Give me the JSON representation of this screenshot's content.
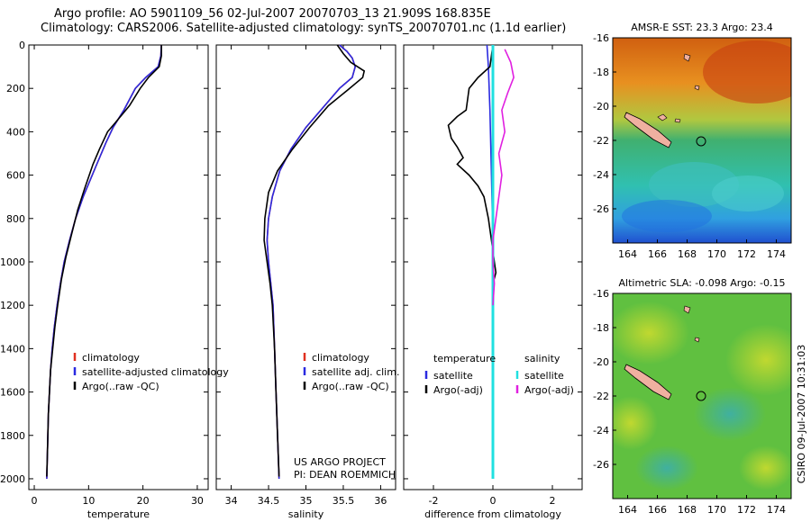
{
  "title_line1": "Argo profile: AO 5901109_56 02-Jul-2007 20070703_13 21.909S 168.835E",
  "title_line2": "Climatology: CARS2006. Satellite-adjusted climatology: synTS_20070701.nc (1.1d earlier)",
  "side_label": "CSIRO 09-Jul-2007 10:31:03",
  "credit_line1": "US ARGO PROJECT",
  "credit_line2": "PI: DEAN ROEMMICH",
  "colors": {
    "climatology": "#e03020",
    "satellite": "#2a2ae0",
    "argo": "#000000",
    "salinity_satellite": "#20e0e0",
    "salinity_argo": "#e020e0"
  },
  "chart_data": [
    {
      "type": "line",
      "xlabel": "temperature",
      "ylabel": "",
      "xlim": [
        -1,
        32
      ],
      "ylim": [
        2050,
        0
      ],
      "xticks": [
        0,
        10,
        20,
        30
      ],
      "yticks": [
        0,
        200,
        400,
        600,
        800,
        1000,
        1200,
        1400,
        1600,
        1800,
        2000
      ],
      "legend": [
        "climatology",
        "satellite-adjusted climatology",
        "Argo(..raw -QC)"
      ],
      "series": [
        {
          "name": "climatology",
          "color": "#e03020",
          "points": [
            [
              23.4,
              0
            ],
            [
              23.3,
              50
            ],
            [
              22.8,
              100
            ],
            [
              20.5,
              150
            ],
            [
              18.6,
              200
            ],
            [
              16.5,
              300
            ],
            [
              14.5,
              380
            ],
            [
              13.2,
              450
            ],
            [
              11.5,
              550
            ],
            [
              9.0,
              700
            ],
            [
              7.6,
              800
            ],
            [
              6.5,
              900
            ],
            [
              5.5,
              1000
            ],
            [
              4.8,
              1100
            ],
            [
              4.2,
              1200
            ],
            [
              3.7,
              1300
            ],
            [
              3.3,
              1400
            ],
            [
              3.0,
              1500
            ],
            [
              2.8,
              1600
            ],
            [
              2.6,
              1700
            ],
            [
              2.5,
              1800
            ],
            [
              2.4,
              1900
            ],
            [
              2.3,
              2000
            ]
          ]
        },
        {
          "name": "satellite-adjusted climatology",
          "color": "#2a2ae0",
          "points": [
            [
              23.4,
              0
            ],
            [
              23.3,
              50
            ],
            [
              22.8,
              100
            ],
            [
              20.5,
              150
            ],
            [
              18.6,
              200
            ],
            [
              16.5,
              300
            ],
            [
              14.5,
              380
            ],
            [
              13.2,
              450
            ],
            [
              11.5,
              550
            ],
            [
              9.0,
              700
            ],
            [
              7.6,
              800
            ],
            [
              6.5,
              900
            ],
            [
              5.5,
              1000
            ],
            [
              4.8,
              1100
            ],
            [
              4.2,
              1200
            ],
            [
              3.7,
              1300
            ],
            [
              3.3,
              1400
            ],
            [
              3.0,
              1500
            ],
            [
              2.8,
              1600
            ],
            [
              2.6,
              1700
            ],
            [
              2.5,
              1800
            ],
            [
              2.4,
              1900
            ],
            [
              2.3,
              2000
            ]
          ]
        },
        {
          "name": "Argo(..raw -QC)",
          "color": "#000000",
          "points": [
            [
              23.4,
              0
            ],
            [
              23.4,
              50
            ],
            [
              23.0,
              100
            ],
            [
              21.0,
              150
            ],
            [
              19.5,
              200
            ],
            [
              17.5,
              280
            ],
            [
              15.2,
              350
            ],
            [
              13.5,
              400
            ],
            [
              12.0,
              480
            ],
            [
              10.8,
              550
            ],
            [
              9.3,
              660
            ],
            [
              8.0,
              760
            ],
            [
              6.8,
              880
            ],
            [
              5.8,
              980
            ],
            [
              5.0,
              1080
            ],
            [
              4.3,
              1200
            ],
            [
              3.8,
              1300
            ],
            [
              3.4,
              1400
            ],
            [
              3.0,
              1500
            ],
            [
              2.8,
              1600
            ],
            [
              2.6,
              1700
            ],
            [
              2.5,
              1800
            ],
            [
              2.4,
              1900
            ],
            [
              2.3,
              1990
            ]
          ]
        }
      ]
    },
    {
      "type": "line",
      "xlabel": "salinity",
      "ylabel": "",
      "xlim": [
        33.8,
        36.2
      ],
      "ylim": [
        2050,
        0
      ],
      "xticks": [
        34,
        34.5,
        35,
        35.5,
        36
      ],
      "legend": [
        "climatology",
        "satellite adj. clim.",
        "Argo(..raw -QC)"
      ],
      "series": [
        {
          "name": "climatology",
          "color": "#e03020",
          "points": [
            [
              35.45,
              0
            ],
            [
              35.55,
              30
            ],
            [
              35.62,
              60
            ],
            [
              35.66,
              100
            ],
            [
              35.62,
              150
            ],
            [
              35.45,
              200
            ],
            [
              35.25,
              280
            ],
            [
              35.0,
              380
            ],
            [
              34.8,
              480
            ],
            [
              34.65,
              580
            ],
            [
              34.55,
              700
            ],
            [
              34.5,
              800
            ],
            [
              34.48,
              900
            ],
            [
              34.5,
              1000
            ],
            [
              34.53,
              1100
            ],
            [
              34.56,
              1200
            ],
            [
              34.58,
              1400
            ],
            [
              34.6,
              1600
            ],
            [
              34.62,
              1800
            ],
            [
              34.64,
              2000
            ]
          ]
        },
        {
          "name": "satellite adj. clim.",
          "color": "#2a2ae0",
          "points": [
            [
              35.45,
              0
            ],
            [
              35.55,
              30
            ],
            [
              35.62,
              60
            ],
            [
              35.66,
              100
            ],
            [
              35.62,
              150
            ],
            [
              35.45,
              200
            ],
            [
              35.25,
              280
            ],
            [
              35.0,
              380
            ],
            [
              34.8,
              480
            ],
            [
              34.65,
              580
            ],
            [
              34.55,
              700
            ],
            [
              34.5,
              800
            ],
            [
              34.48,
              900
            ],
            [
              34.5,
              1000
            ],
            [
              34.53,
              1100
            ],
            [
              34.56,
              1200
            ],
            [
              34.58,
              1400
            ],
            [
              34.6,
              1600
            ],
            [
              34.62,
              1800
            ],
            [
              34.64,
              2000
            ]
          ]
        },
        {
          "name": "Argo(..raw -QC)",
          "color": "#000000",
          "points": [
            [
              35.42,
              0
            ],
            [
              35.5,
              40
            ],
            [
              35.6,
              80
            ],
            [
              35.78,
              120
            ],
            [
              35.76,
              150
            ],
            [
              35.55,
              210
            ],
            [
              35.3,
              280
            ],
            [
              35.05,
              380
            ],
            [
              34.82,
              480
            ],
            [
              34.62,
              580
            ],
            [
              34.5,
              680
            ],
            [
              34.45,
              800
            ],
            [
              34.44,
              900
            ],
            [
              34.48,
              1000
            ],
            [
              34.52,
              1100
            ],
            [
              34.55,
              1200
            ],
            [
              34.58,
              1400
            ],
            [
              34.6,
              1600
            ],
            [
              34.62,
              1800
            ],
            [
              34.64,
              1990
            ]
          ]
        }
      ]
    },
    {
      "type": "line",
      "xlabel": "difference from climatology",
      "ylabel": "",
      "xlim": [
        -3,
        3
      ],
      "ylim": [
        2050,
        0
      ],
      "xticks": [
        -2,
        0,
        2
      ],
      "legend": [
        "temperature",
        "satellite",
        "Argo(-adj)",
        "salinity",
        "satellite",
        "Argo(-adj)"
      ],
      "series": [
        {
          "name": "temperature satellite",
          "color": "#2a2ae0",
          "points": [
            [
              -0.2,
              0
            ],
            [
              -0.15,
              100
            ],
            [
              -0.1,
              300
            ],
            [
              -0.05,
              600
            ],
            [
              0,
              900
            ],
            [
              0,
              1200
            ]
          ]
        },
        {
          "name": "temperature Argo(-adj)",
          "color": "#000000",
          "points": [
            [
              0,
              0
            ],
            [
              -0.1,
              100
            ],
            [
              -0.5,
              150
            ],
            [
              -0.8,
              200
            ],
            [
              -0.9,
              300
            ],
            [
              -1.2,
              330
            ],
            [
              -1.5,
              370
            ],
            [
              -1.4,
              430
            ],
            [
              -1.2,
              470
            ],
            [
              -1.0,
              520
            ],
            [
              -1.2,
              550
            ],
            [
              -0.8,
              600
            ],
            [
              -0.5,
              650
            ],
            [
              -0.3,
              700
            ],
            [
              -0.15,
              800
            ],
            [
              -0.05,
              900
            ],
            [
              0.05,
              1000
            ],
            [
              0.1,
              1050
            ],
            [
              0,
              1100
            ],
            [
              0,
              1250
            ]
          ]
        },
        {
          "name": "salinity satellite",
          "color": "#20e0e0",
          "points": [
            [
              0,
              0
            ],
            [
              0,
              500
            ],
            [
              0,
              1000
            ],
            [
              0,
              1500
            ],
            [
              0,
              2000
            ]
          ]
        },
        {
          "name": "salinity Argo(-adj)",
          "color": "#e020e0",
          "points": [
            [
              0.4,
              20
            ],
            [
              0.6,
              80
            ],
            [
              0.7,
              150
            ],
            [
              0.5,
              220
            ],
            [
              0.3,
              300
            ],
            [
              0.4,
              400
            ],
            [
              0.2,
              500
            ],
            [
              0.3,
              600
            ],
            [
              0.2,
              700
            ],
            [
              0.1,
              800
            ],
            [
              0,
              900
            ],
            [
              0,
              1000
            ],
            [
              0.05,
              1100
            ],
            [
              0,
              1200
            ]
          ]
        }
      ]
    },
    {
      "type": "heatmap",
      "title": "AMSR-E SST: 23.3 Argo: 23.4",
      "xlim": [
        163,
        175
      ],
      "ylim": [
        -28,
        -16
      ],
      "xticks": [
        164,
        166,
        168,
        170,
        172,
        174
      ],
      "yticks": [
        -16,
        -18,
        -20,
        -22,
        -24,
        -26
      ]
    },
    {
      "type": "heatmap",
      "title": "Altimetric SLA: -0.098 Argo: -0.15",
      "xlim": [
        163,
        175
      ],
      "ylim": [
        -28,
        -16
      ],
      "xticks": [
        164,
        166,
        168,
        170,
        172,
        174
      ],
      "yticks": [
        -16,
        -18,
        -20,
        -22,
        -24,
        -26
      ]
    }
  ]
}
